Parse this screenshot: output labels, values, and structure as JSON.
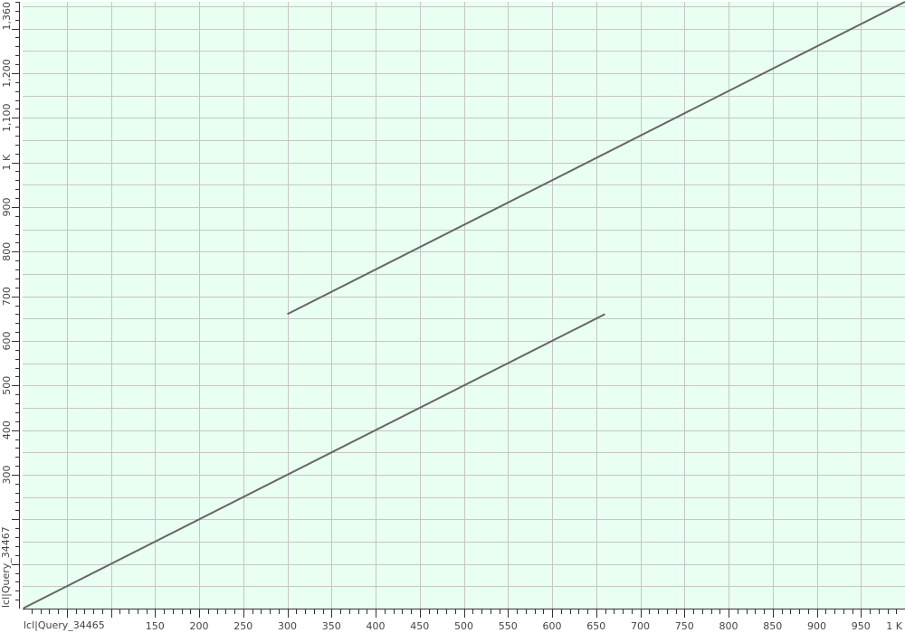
{
  "colors": {
    "plot_background": "#e9fff1",
    "grid": "#c6c6c6",
    "line": "#666666",
    "axis_text": "#444444"
  },
  "chart_data": {
    "type": "line",
    "title": "",
    "xlabel": "lcl|Query_34465",
    "ylabel": "lcl|Query_34467",
    "xlim": [
      0,
      1000
    ],
    "ylim": [
      0,
      1360
    ],
    "grid": true,
    "x_ticks": [
      {
        "value": 150,
        "label": "150"
      },
      {
        "value": 200,
        "label": "200"
      },
      {
        "value": 250,
        "label": "250"
      },
      {
        "value": 300,
        "label": "300"
      },
      {
        "value": 350,
        "label": "350"
      },
      {
        "value": 400,
        "label": "400"
      },
      {
        "value": 450,
        "label": "450"
      },
      {
        "value": 500,
        "label": "500"
      },
      {
        "value": 550,
        "label": "550"
      },
      {
        "value": 600,
        "label": "600"
      },
      {
        "value": 650,
        "label": "650"
      },
      {
        "value": 700,
        "label": "700"
      },
      {
        "value": 750,
        "label": "750"
      },
      {
        "value": 800,
        "label": "800"
      },
      {
        "value": 850,
        "label": "850"
      },
      {
        "value": 900,
        "label": "900"
      },
      {
        "value": 950,
        "label": "950"
      },
      {
        "value": 1000,
        "label": "1 K"
      }
    ],
    "y_ticks": [
      {
        "value": 300,
        "label": "300"
      },
      {
        "value": 400,
        "label": "400"
      },
      {
        "value": 500,
        "label": "500"
      },
      {
        "value": 600,
        "label": "600"
      },
      {
        "value": 700,
        "label": "700"
      },
      {
        "value": 800,
        "label": "800"
      },
      {
        "value": 900,
        "label": "900"
      },
      {
        "value": 1000,
        "label": "1 K"
      },
      {
        "value": 1100,
        "label": "1,100"
      },
      {
        "value": 1200,
        "label": "1,200"
      },
      {
        "value": 1360,
        "label": "1,360"
      }
    ],
    "series": [
      {
        "x": [
          1,
          660
        ],
        "y": [
          1,
          660
        ]
      },
      {
        "x": [
          300,
          1000
        ],
        "y": [
          660,
          1360
        ]
      }
    ]
  }
}
